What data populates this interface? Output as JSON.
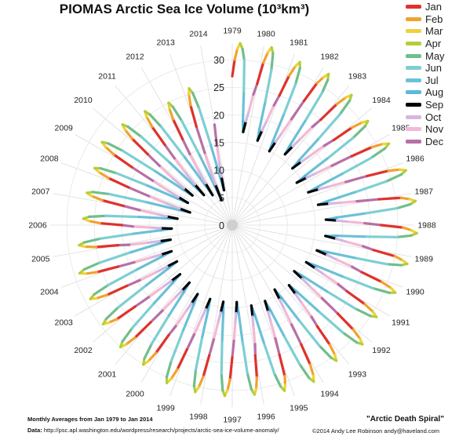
{
  "chart_data": {
    "type": "line",
    "polar": true,
    "title": "PIOMAS Arctic Sea Ice Volume (10³km³)",
    "radial_ticks": [
      0,
      5,
      10,
      15,
      20,
      25,
      30
    ],
    "radial_range": [
      0,
      33
    ],
    "years": [
      "1979",
      "1980",
      "1981",
      "1982",
      "1983",
      "1984",
      "1985",
      "1986",
      "1987",
      "1988",
      "1989",
      "1990",
      "1991",
      "1992",
      "1993",
      "1994",
      "1995",
      "1996",
      "1997",
      "1998",
      "1999",
      "2000",
      "2001",
      "2002",
      "2003",
      "2004",
      "2005",
      "2006",
      "2007",
      "2008",
      "2009",
      "2010",
      "2011",
      "2012",
      "2013",
      "2014"
    ],
    "series": [
      {
        "name": "Jan",
        "color": "#e0312b",
        "values": [
          27,
          26,
          25,
          26,
          25,
          24,
          25,
          26,
          27,
          27,
          26,
          25,
          24,
          25,
          24,
          25,
          25,
          24,
          24,
          24,
          24,
          23,
          23,
          23,
          22,
          22,
          21,
          20,
          20,
          20,
          21,
          20,
          19,
          18,
          19,
          18.5
        ]
      },
      {
        "name": "Feb",
        "color": "#f0a22e",
        "values": [
          30,
          30,
          29,
          30,
          29,
          28,
          29,
          30,
          31,
          31,
          30,
          29,
          28,
          29,
          28,
          29,
          29,
          28,
          28,
          28,
          28,
          27,
          27,
          27,
          26,
          26,
          25,
          24,
          24,
          24,
          25,
          24,
          23,
          22,
          23,
          null
        ]
      },
      {
        "name": "Mar",
        "color": "#ecd23a",
        "values": [
          32,
          32,
          31,
          31.5,
          31,
          30,
          31,
          32,
          32.5,
          32.5,
          31.5,
          31,
          30,
          31,
          30,
          31,
          30.5,
          30,
          30,
          30,
          30,
          29,
          29,
          28.5,
          28,
          28,
          27,
          26,
          26,
          26,
          27,
          26,
          25,
          24,
          25,
          null
        ]
      },
      {
        "name": "Apr",
        "color": "#b5cd3a",
        "values": [
          33,
          33,
          32,
          32.5,
          32,
          31,
          32,
          33,
          33.5,
          33.5,
          32.5,
          32,
          31,
          32,
          31,
          32,
          31.5,
          31,
          31,
          31,
          31,
          30,
          30,
          29.5,
          29,
          29,
          28,
          27,
          27,
          27,
          28,
          27,
          26,
          25,
          26,
          null
        ]
      },
      {
        "name": "May",
        "color": "#6fbf8a",
        "values": [
          32,
          32,
          31,
          31.5,
          31,
          30,
          31,
          32,
          32.5,
          32.5,
          31.5,
          31,
          30,
          31,
          30,
          31,
          30.5,
          30,
          30,
          30,
          30,
          29,
          29,
          28.5,
          28,
          28,
          27,
          26,
          26,
          26,
          27,
          26,
          25,
          24,
          25,
          null
        ]
      },
      {
        "name": "Jun",
        "color": "#7ccfd3",
        "values": [
          30,
          29,
          28,
          29,
          28,
          27,
          28,
          29,
          30,
          30,
          29,
          28,
          27,
          28,
          27,
          28,
          28,
          27,
          27,
          27,
          27,
          26,
          26,
          25.5,
          25,
          25,
          24,
          23,
          23,
          23,
          24,
          23,
          22,
          21,
          22,
          null
        ]
      },
      {
        "name": "Jul",
        "color": "#6bc0d6",
        "values": [
          24,
          23,
          22,
          23,
          22,
          21,
          22,
          23,
          24,
          24,
          23,
          22,
          21,
          22,
          21,
          22,
          22,
          21,
          21,
          21,
          21,
          20,
          20,
          19,
          19,
          19,
          18,
          17,
          16,
          17,
          17,
          16,
          15,
          14,
          15,
          null
        ]
      },
      {
        "name": "Aug",
        "color": "#5cb8dc",
        "values": [
          19,
          18,
          17,
          18,
          17,
          16,
          17,
          18,
          19,
          19,
          18,
          17,
          16,
          17,
          16,
          17,
          17,
          16,
          16,
          16,
          16,
          15,
          15,
          14,
          14,
          13.5,
          13,
          12,
          10,
          11,
          11,
          10,
          9,
          8,
          9,
          null
        ]
      },
      {
        "name": "Sep",
        "color": "#000000",
        "values": [
          17,
          16,
          15,
          16,
          15,
          14,
          15,
          16,
          17,
          17,
          16,
          15,
          14,
          15,
          14,
          15,
          15,
          14,
          14,
          14,
          14,
          13,
          13,
          12,
          12,
          11.5,
          11,
          10,
          8,
          9,
          9,
          7.5,
          6.5,
          5,
          6.5,
          null
        ]
      },
      {
        "name": "Oct",
        "color": "#d4b8e0",
        "values": [
          19,
          18,
          17,
          18,
          17,
          16,
          17,
          18,
          19,
          19,
          18,
          17,
          16,
          17,
          16,
          17,
          17,
          16,
          16,
          16,
          16,
          15,
          15,
          14,
          14,
          13.5,
          13,
          12,
          10,
          11,
          11,
          10,
          9,
          8,
          9,
          null
        ]
      },
      {
        "name": "Nov",
        "color": "#f4b8d4",
        "values": [
          21,
          20,
          19,
          20,
          19,
          18,
          19,
          20,
          21,
          21,
          20,
          19,
          18,
          19,
          18,
          19,
          19,
          18,
          18,
          18,
          18,
          17,
          17,
          16.5,
          16,
          16,
          15,
          14,
          13,
          13.5,
          14,
          13,
          12,
          11,
          12,
          null
        ]
      },
      {
        "name": "Dec",
        "color": "#b86fa6",
        "values": [
          24,
          23,
          22,
          23,
          22,
          21,
          22,
          23,
          24,
          24,
          23,
          22,
          21,
          22,
          21,
          22,
          22,
          21,
          21,
          21,
          21,
          20,
          20,
          19.5,
          19,
          19,
          18,
          17,
          16,
          16.5,
          17,
          16,
          15,
          14,
          15,
          null
        ]
      }
    ],
    "legend_position": "top-right",
    "grid": true
  },
  "notes": {
    "subtitle": "Monthly Averages from Jan 1979 to Jan 2014",
    "source_label": "Data:",
    "source_url": "http://psc.apl.washington.edu/wordpress/research/projects/arctic-sea-ice-volume-anomaly/",
    "tagline": "\"Arctic Death Spiral\"",
    "credit": "©2014 Andy Lee Robinson andy@haveland.com"
  }
}
